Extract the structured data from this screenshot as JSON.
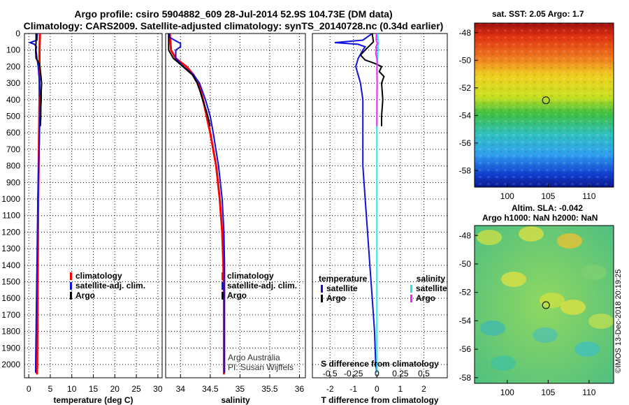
{
  "titles": {
    "line1": "Argo profile: csiro 5904882_609 28-Jul-2014 52.9S 104.73E (DM data)",
    "line2": "Climatology: CARS2009. Satellite-adjusted climatology: synTS_20140728.nc (0.34d earlier)"
  },
  "maps": {
    "sst_title": "sat. SST: 2.05 Argo: 1.7",
    "sla_title_1": "Altim. SLA: -0.042",
    "sla_title_2": "Argo h1000: NaN h2000: NaN",
    "lat_ticks": [
      "-48",
      "-50",
      "-52",
      "-54",
      "-56",
      "-58"
    ],
    "lon_ticks": [
      "100",
      "105",
      "110"
    ],
    "argo_position": {
      "lon": 104.73,
      "lat": -52.9
    }
  },
  "credits": {
    "argo_line1": "Argo Australia",
    "argo_line2": "PI: Susan Wijffels",
    "imos": "©IMOS 13-Dec-2018 20:19:25"
  },
  "colors": {
    "climatology": "#ff0000",
    "satellite": "#1010e0",
    "argo": "#000000",
    "salinity_satellite": "#20e8f0",
    "salinity_argo": "#ff20ff"
  },
  "chart_data": [
    {
      "type": "line",
      "panel": "temperature",
      "xlabel": "temperature (deg C)",
      "ylabel": "",
      "xlim": [
        -1,
        31
      ],
      "ylim": [
        2080,
        0
      ],
      "xticks": [
        "0",
        "5",
        "10",
        "15",
        "20",
        "25",
        "30"
      ],
      "xtick_values": [
        0,
        5,
        10,
        15,
        20,
        25,
        30
      ],
      "yticks": [
        "0",
        "100",
        "200",
        "300",
        "400",
        "500",
        "600",
        "700",
        "800",
        "900",
        "1000",
        "1100",
        "1200",
        "1300",
        "1400",
        "1500",
        "1600",
        "1700",
        "1800",
        "1900",
        "2000"
      ],
      "ytick_values": [
        0,
        100,
        200,
        300,
        400,
        500,
        600,
        700,
        800,
        900,
        1000,
        1100,
        1200,
        1300,
        1400,
        1500,
        1600,
        1700,
        1800,
        1900,
        2000
      ],
      "legend": [
        "climatology",
        "satellite-adj. clim.",
        "Argo"
      ],
      "series": [
        {
          "name": "climatology",
          "color": "#ff0000",
          "depth": [
            0,
            100,
            200,
            300,
            400,
            500,
            600,
            800,
            1000,
            1200,
            1400,
            1600,
            1800,
            2000,
            2060
          ],
          "values": [
            2.6,
            2.5,
            2.5,
            2.5,
            2.5,
            2.45,
            2.4,
            2.3,
            2.2,
            2.15,
            2.1,
            2.05,
            2.0,
            1.95,
            1.9
          ]
        },
        {
          "name": "satellite-adj. clim.",
          "color": "#1010e0",
          "depth": [
            0,
            40,
            55,
            65,
            80,
            100,
            150,
            200,
            300,
            400,
            500,
            600,
            800,
            1000,
            1200,
            1400,
            1600,
            1800,
            2000,
            2050
          ],
          "values": [
            2.0,
            1.9,
            0.3,
            1.3,
            1.8,
            1.7,
            1.9,
            2.2,
            2.5,
            2.7,
            2.6,
            2.5,
            2.3,
            2.1,
            2.0,
            1.9,
            1.8,
            1.7,
            1.6,
            1.6
          ]
        },
        {
          "name": "Argo",
          "color": "#000000",
          "depth": [
            0,
            50,
            100,
            150,
            180,
            200,
            250,
            300,
            350,
            400,
            450,
            500,
            560
          ],
          "values": [
            1.7,
            1.7,
            1.6,
            1.7,
            2.4,
            2.6,
            2.8,
            3.0,
            2.9,
            2.9,
            2.8,
            2.8,
            2.7
          ]
        }
      ]
    },
    {
      "type": "line",
      "panel": "salinity",
      "xlabel": "salinity",
      "ylabel": "",
      "xlim": [
        33.75,
        36.1
      ],
      "ylim": [
        2080,
        0
      ],
      "xticks": [
        "34",
        "34.5",
        "35",
        "35.5",
        "36"
      ],
      "xtick_values": [
        34,
        34.5,
        35,
        35.5,
        36
      ],
      "legend": [
        "climatology",
        "satellite-adj. clim.",
        "Argo"
      ],
      "series": [
        {
          "name": "climatology",
          "color": "#ff0000",
          "depth": [
            0,
            100,
            150,
            200,
            250,
            300,
            400,
            500,
            600,
            800,
            1000,
            1200,
            1400,
            1600,
            1800,
            2000,
            2060
          ],
          "values": [
            33.82,
            33.84,
            33.92,
            34.1,
            34.22,
            34.3,
            34.38,
            34.44,
            34.5,
            34.6,
            34.66,
            34.7,
            34.72,
            34.73,
            34.73,
            34.73,
            34.73
          ]
        },
        {
          "name": "satellite-adj. clim.",
          "color": "#1010e0",
          "depth": [
            0,
            20,
            40,
            60,
            80,
            100,
            150,
            200,
            250,
            300,
            400,
            500,
            600,
            800,
            1000,
            1200,
            1400,
            1600,
            1800,
            2000,
            2050
          ],
          "values": [
            33.82,
            33.8,
            33.9,
            34.0,
            34.0,
            33.92,
            33.92,
            34.05,
            34.22,
            34.32,
            34.42,
            34.5,
            34.55,
            34.64,
            34.7,
            34.73,
            34.74,
            34.74,
            34.74,
            34.74,
            34.74
          ]
        },
        {
          "name": "Argo",
          "color": "#000000",
          "depth": [
            0,
            100,
            150,
            200,
            250,
            300,
            350,
            400,
            450,
            500,
            560
          ],
          "values": [
            33.8,
            33.8,
            33.88,
            34.04,
            34.2,
            34.28,
            34.33,
            34.37,
            34.42,
            34.46,
            34.5
          ]
        }
      ]
    },
    {
      "type": "line",
      "panel": "difference",
      "xlabel": "T difference from climatology",
      "xlabel_top": "S difference from climatology",
      "xlim": [
        -2.75,
        3.0
      ],
      "ylim": [
        2080,
        0
      ],
      "xticks": [
        "-2",
        "-1",
        "0",
        "1",
        "2"
      ],
      "xtick_values": [
        -2,
        -1,
        0,
        1,
        2
      ],
      "s_ticks": [
        "-0.5",
        "-0.25",
        "0",
        "0.25",
        "0.5"
      ],
      "s_tick_values": [
        -0.5,
        -0.25,
        0,
        0.25,
        0.5
      ],
      "legend_temperature_title": "temperature",
      "legend_salinity_title": "salinity",
      "legend_temperature": [
        "satellite",
        "Argo"
      ],
      "legend_salinity": [
        "satellite",
        "Argo"
      ],
      "series": [
        {
          "name": "T satellite",
          "color": "#1010e0",
          "depth": [
            0,
            20,
            40,
            55,
            65,
            80,
            100,
            150,
            200,
            300,
            400,
            500,
            600,
            800,
            1000,
            1200,
            1400,
            1600,
            1800,
            2000,
            2050
          ],
          "values": [
            -0.2,
            -0.4,
            -0.6,
            -1.8,
            -0.8,
            -0.5,
            -0.6,
            -0.8,
            -0.9,
            -0.7,
            -0.6,
            -0.6,
            -0.6,
            -0.6,
            -0.5,
            -0.4,
            -0.3,
            -0.2,
            -0.1,
            -0.05,
            0
          ]
        },
        {
          "name": "T Argo",
          "color": "#000000",
          "depth": [
            0,
            50,
            100,
            130,
            160,
            180,
            200,
            230,
            260,
            300,
            400,
            500,
            560
          ],
          "values": [
            -0.2,
            -0.15,
            -0.5,
            -0.7,
            -0.5,
            -0.1,
            0.2,
            0.1,
            0.3,
            0.2,
            0.25,
            0.2,
            0.2
          ]
        },
        {
          "name": "S satellite",
          "color": "#20e8f0",
          "depth": [
            0,
            30,
            50,
            80,
            100,
            130,
            160,
            200,
            300,
            400,
            500,
            600,
            800,
            1000,
            1200,
            1400,
            1600,
            1800,
            2000,
            2050
          ],
          "values": [
            0.03,
            0.04,
            0.07,
            0.05,
            0.05,
            0.02,
            0.02,
            0.01,
            0.01,
            0.01,
            0.0,
            0.0,
            0.0,
            0.0,
            0.0,
            0.0,
            0.0,
            0.0,
            0.0,
            0.0
          ]
        },
        {
          "name": "S Argo",
          "color": "#ff20ff",
          "depth": [
            0,
            40,
            60,
            80,
            100,
            120,
            150,
            180,
            220,
            300,
            400,
            500,
            560
          ],
          "values": [
            -0.02,
            -0.03,
            0.02,
            -0.04,
            -0.03,
            -0.05,
            0.0,
            0.01,
            0.0,
            0.01,
            0.0,
            0.0,
            0.0
          ]
        }
      ]
    }
  ]
}
